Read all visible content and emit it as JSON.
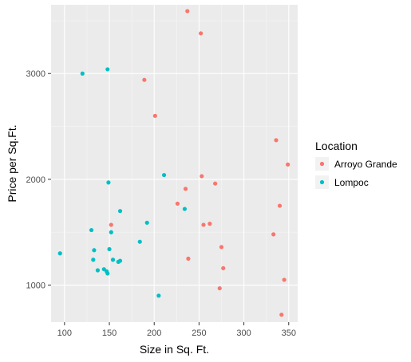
{
  "chart_data": {
    "type": "scatter",
    "title": "",
    "xlabel": "Size in Sq. Ft.",
    "ylabel": "Price per Sq.Ft.",
    "xlim": [
      85,
      360
    ],
    "ylim": [
      650,
      3650
    ],
    "x_ticks": [
      100,
      150,
      200,
      250,
      300,
      350
    ],
    "y_ticks": [
      1000,
      2000,
      3000
    ],
    "x_tick_labels": [
      "100",
      "150",
      "200",
      "250",
      "300",
      "350"
    ],
    "y_tick_labels": [
      "1000",
      "2000",
      "3000"
    ],
    "grid": true,
    "legend": {
      "title": "Location",
      "position": "right"
    },
    "series": [
      {
        "name": "Arroyo Grande",
        "color": "#F8766D",
        "points": [
          {
            "x": 237,
            "y": 3590
          },
          {
            "x": 252,
            "y": 3380
          },
          {
            "x": 189,
            "y": 2940
          },
          {
            "x": 201,
            "y": 2600
          },
          {
            "x": 336,
            "y": 2370
          },
          {
            "x": 349,
            "y": 2140
          },
          {
            "x": 253,
            "y": 2030
          },
          {
            "x": 268,
            "y": 1960
          },
          {
            "x": 235,
            "y": 1910
          },
          {
            "x": 226,
            "y": 1770
          },
          {
            "x": 340,
            "y": 1750
          },
          {
            "x": 152,
            "y": 1570
          },
          {
            "x": 255,
            "y": 1570
          },
          {
            "x": 262,
            "y": 1580
          },
          {
            "x": 333,
            "y": 1480
          },
          {
            "x": 275,
            "y": 1360
          },
          {
            "x": 238,
            "y": 1250
          },
          {
            "x": 277,
            "y": 1160
          },
          {
            "x": 345,
            "y": 1050
          },
          {
            "x": 273,
            "y": 970
          },
          {
            "x": 342,
            "y": 720
          }
        ]
      },
      {
        "name": "Lompoc",
        "color": "#00BFC4",
        "points": [
          {
            "x": 120,
            "y": 3000
          },
          {
            "x": 148,
            "y": 3040
          },
          {
            "x": 211,
            "y": 2040
          },
          {
            "x": 149,
            "y": 1970
          },
          {
            "x": 234,
            "y": 1720
          },
          {
            "x": 162,
            "y": 1700
          },
          {
            "x": 192,
            "y": 1590
          },
          {
            "x": 130,
            "y": 1520
          },
          {
            "x": 152,
            "y": 1500
          },
          {
            "x": 184,
            "y": 1410
          },
          {
            "x": 95,
            "y": 1300
          },
          {
            "x": 133,
            "y": 1330
          },
          {
            "x": 150,
            "y": 1340
          },
          {
            "x": 132,
            "y": 1240
          },
          {
            "x": 154,
            "y": 1240
          },
          {
            "x": 160,
            "y": 1220
          },
          {
            "x": 162,
            "y": 1230
          },
          {
            "x": 144,
            "y": 1150
          },
          {
            "x": 137,
            "y": 1140
          },
          {
            "x": 147,
            "y": 1130
          },
          {
            "x": 148,
            "y": 1110
          },
          {
            "x": 205,
            "y": 900
          }
        ]
      }
    ]
  }
}
